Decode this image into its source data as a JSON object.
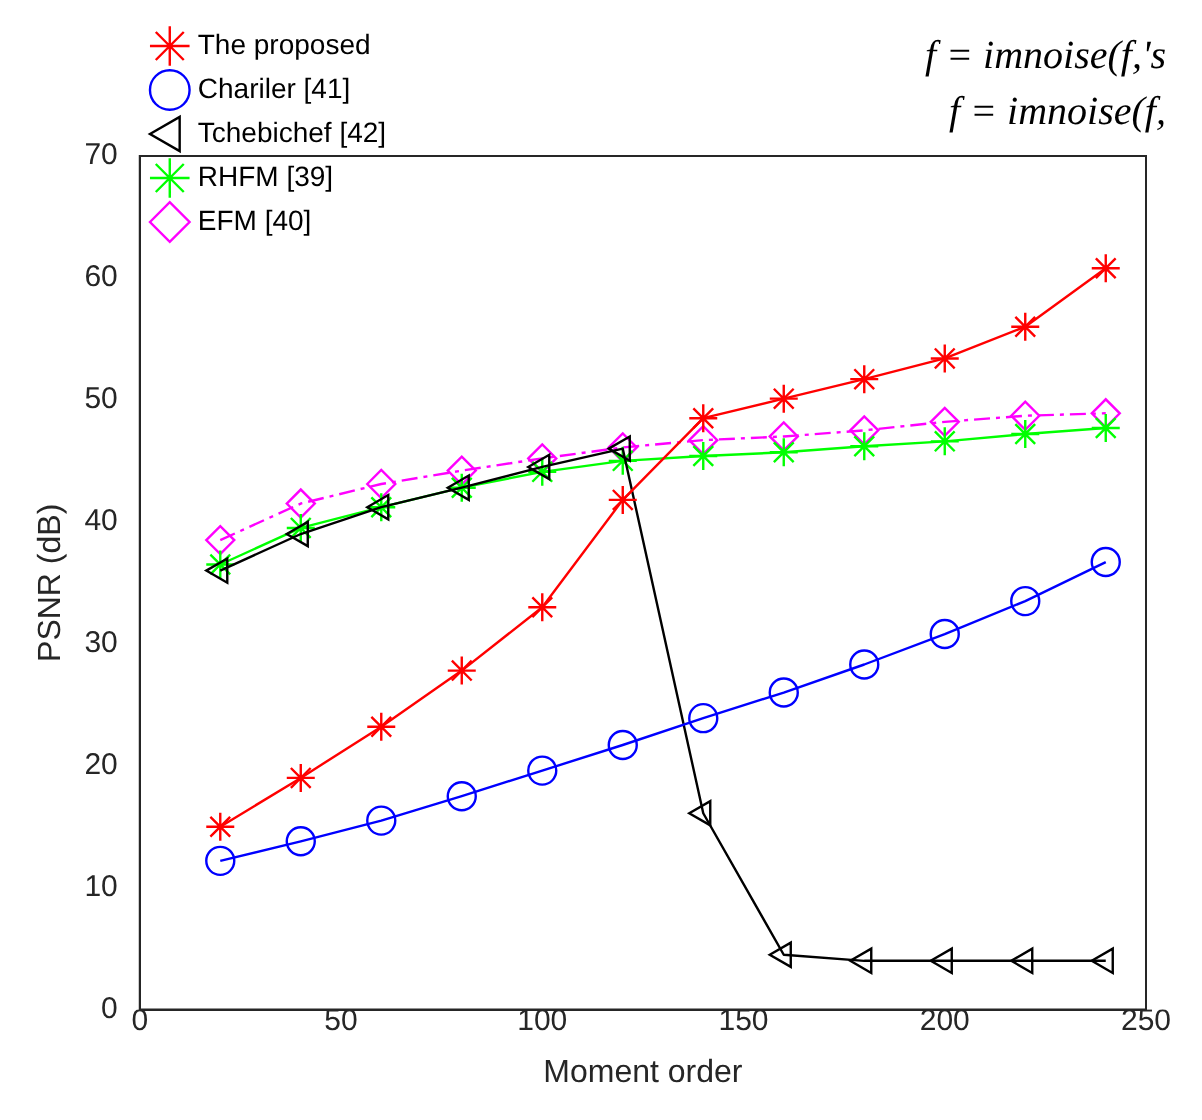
{
  "chart_data": {
    "type": "line",
    "xlabel": "Moment order",
    "ylabel": "PSNR (dB)",
    "x": [
      20,
      40,
      60,
      80,
      100,
      120,
      140,
      160,
      180,
      200,
      220,
      240
    ],
    "xlim": [
      0,
      250
    ],
    "xticks": [
      0,
      50,
      100,
      150,
      200,
      250
    ],
    "ylim": [
      0,
      70
    ],
    "yticks": [
      0,
      10,
      20,
      30,
      40,
      50,
      60,
      70
    ],
    "grid": false,
    "legend": "top left",
    "annotations": [
      "f = imnoise(f,'s",
      "f = imnoise(f,"
    ],
    "series": [
      {
        "name": "The proposed",
        "color": "#ff0000",
        "marker": "cross",
        "line_style": "solid",
        "values": [
          15,
          19,
          23.2,
          27.8,
          33,
          41.8,
          48.5,
          50.1,
          51.7,
          53.4,
          56,
          60.8
        ]
      },
      {
        "name": "Chariler [41]",
        "color": "#0000ff",
        "marker": "circle",
        "line_style": "solid",
        "values": [
          12.2,
          13.8,
          15.5,
          17.5,
          19.6,
          21.7,
          23.9,
          26,
          28.3,
          30.8,
          33.5,
          36.7
        ]
      },
      {
        "name": "Tchebichef [42]",
        "color": "#000000",
        "marker": "triangle",
        "line_style": "solid",
        "values": [
          36,
          39,
          41.2,
          42.8,
          44.5,
          46,
          16.1,
          4.5,
          4,
          4,
          4,
          4
        ]
      },
      {
        "name": "RHFM [39]",
        "color": "#00ff00",
        "marker": "cross",
        "line_style": "solid",
        "values": [
          36.5,
          39.5,
          41.2,
          42.8,
          44.1,
          45,
          45.4,
          45.7,
          46.2,
          46.6,
          47.2,
          47.7
        ]
      },
      {
        "name": "EFM [40]",
        "color": "#ff00ff",
        "marker": "diamond",
        "line_style": "dashed",
        "values": [
          38.5,
          41.5,
          43.1,
          44.2,
          45.2,
          46.1,
          46.7,
          47,
          47.5,
          48.2,
          48.7,
          48.9
        ]
      }
    ]
  }
}
